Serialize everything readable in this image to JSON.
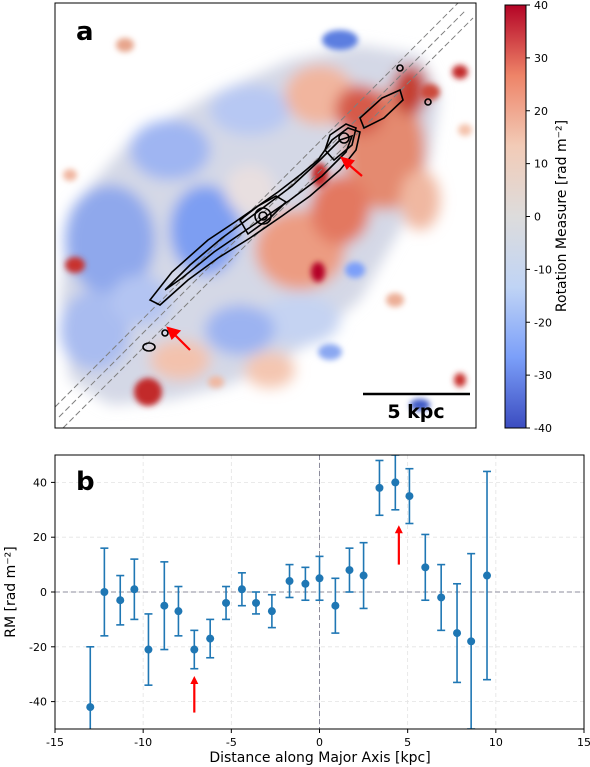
{
  "panel_a": {
    "label": "a",
    "scalebar_label": "5 kpc",
    "colorbar": {
      "label": "Rotation Measure [rad m⁻²]",
      "ticks": [
        40,
        30,
        20,
        10,
        0,
        -10,
        -20,
        -30,
        -40
      ],
      "min": -40,
      "max": 40,
      "colormap": [
        "#3b4cc0",
        "#7b9ff9",
        "#c0d4f5",
        "#dddcdc",
        "#f2cbb7",
        "#ee8468",
        "#b40426"
      ]
    }
  },
  "chart_data": {
    "type": "scatter",
    "panel_label": "b",
    "xlabel": "Distance along Major Axis [kpc]",
    "ylabel": "RM [rad m⁻²]",
    "xlim": [
      -15,
      15
    ],
    "ylim": [
      -50,
      50
    ],
    "xticks": [
      -15,
      -10,
      -5,
      0,
      5,
      10,
      15
    ],
    "yticks": [
      -40,
      -20,
      0,
      20,
      40
    ],
    "grid": true,
    "marker_color": "#1f77b4",
    "points": [
      {
        "x": -13.0,
        "y": -42,
        "err": 22
      },
      {
        "x": -12.2,
        "y": 0,
        "err": 16
      },
      {
        "x": -11.3,
        "y": -3,
        "err": 9
      },
      {
        "x": -10.5,
        "y": 1,
        "err": 11
      },
      {
        "x": -9.7,
        "y": -21,
        "err": 13
      },
      {
        "x": -8.8,
        "y": -5,
        "err": 16
      },
      {
        "x": -8.0,
        "y": -7,
        "err": 9
      },
      {
        "x": -7.1,
        "y": -21,
        "err": 7
      },
      {
        "x": -6.2,
        "y": -17,
        "err": 7
      },
      {
        "x": -5.3,
        "y": -4,
        "err": 6
      },
      {
        "x": -4.4,
        "y": 1,
        "err": 6
      },
      {
        "x": -3.6,
        "y": -4,
        "err": 4
      },
      {
        "x": -2.7,
        "y": -7,
        "err": 6
      },
      {
        "x": -1.7,
        "y": 4,
        "err": 6
      },
      {
        "x": -0.8,
        "y": 3,
        "err": 6
      },
      {
        "x": 0.0,
        "y": 5,
        "err": 8
      },
      {
        "x": 0.9,
        "y": -5,
        "err": 10
      },
      {
        "x": 1.7,
        "y": 8,
        "err": 8
      },
      {
        "x": 2.5,
        "y": 6,
        "err": 12
      },
      {
        "x": 3.4,
        "y": 38,
        "err": 10
      },
      {
        "x": 4.3,
        "y": 40,
        "err": 10
      },
      {
        "x": 5.1,
        "y": 35,
        "err": 10
      },
      {
        "x": 6.0,
        "y": 9,
        "err": 12
      },
      {
        "x": 6.9,
        "y": -2,
        "err": 12
      },
      {
        "x": 7.8,
        "y": -15,
        "err": 18
      },
      {
        "x": 8.6,
        "y": -18,
        "err": 32
      },
      {
        "x": 9.5,
        "y": 6,
        "err": 38
      }
    ],
    "arrows": [
      {
        "x": -7.1,
        "y_tail": -44,
        "y_head": -31
      },
      {
        "x": 4.5,
        "y_tail": 10,
        "y_head": 24
      }
    ]
  }
}
